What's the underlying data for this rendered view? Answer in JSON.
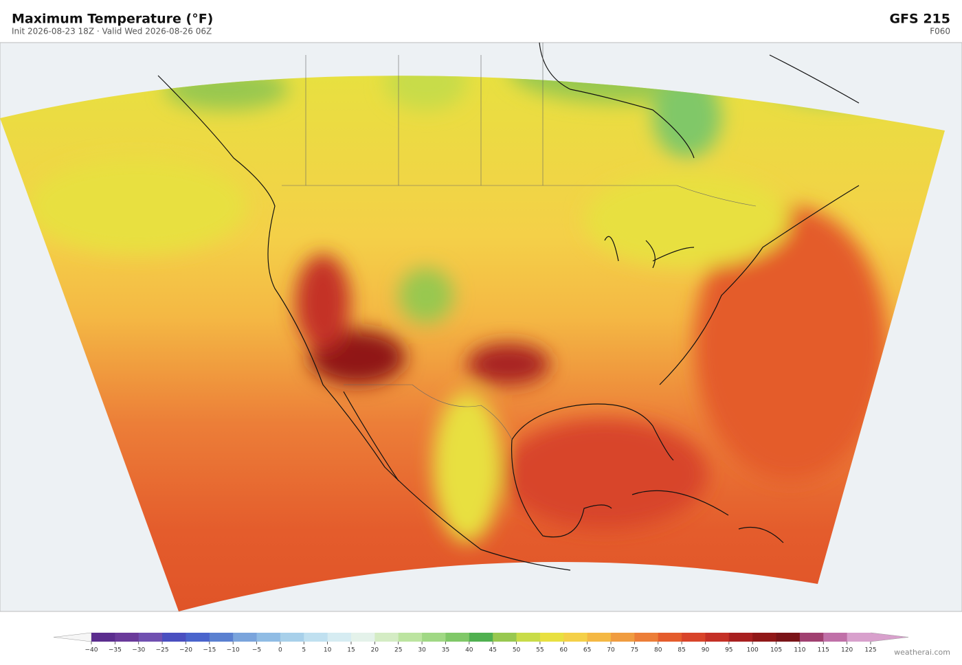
{
  "header": {
    "title": "Maximum Temperature  (°F)",
    "subtitle": "Init 2026-08-23 18Z   ·   Valid Wed 2026-08-26 06Z",
    "model": "GFS  215",
    "forecast_hour": "F060"
  },
  "colorbar": {
    "lim": [
      -40,
      125
    ],
    "ticks": [
      {
        "value": -40,
        "label": "−40"
      },
      {
        "value": -35,
        "label": "−35"
      },
      {
        "value": -30,
        "label": "−30"
      },
      {
        "value": -25,
        "label": "−25"
      },
      {
        "value": -20,
        "label": "−20"
      },
      {
        "value": -15,
        "label": "−15"
      },
      {
        "value": -10,
        "label": "−10"
      },
      {
        "value": -5,
        "label": "−5"
      },
      0,
      5,
      10,
      15,
      20,
      25,
      30,
      35,
      40,
      45,
      50,
      55,
      60,
      65,
      70,
      75,
      80,
      85,
      90,
      95,
      100,
      105,
      110,
      115,
      120,
      125
    ],
    "colors": [
      "#5b2d8e",
      "#6a3a9a",
      "#7050b0",
      "#4a4fc0",
      "#4a64cc",
      "#5a80d0",
      "#7aa4dc",
      "#90bce4",
      "#a8d0ea",
      "#c0e0f0",
      "#d6ecf2",
      "#e4f2ea",
      "#d4ecc4",
      "#bce4a0",
      "#a0d884",
      "#80c868",
      "#50b050",
      "#98c850",
      "#c8dc48",
      "#e8e040",
      "#f4d048",
      "#f4b844",
      "#f09c40",
      "#ec7e38",
      "#e45c2c",
      "#d8442a",
      "#c43026",
      "#a82020",
      "#901818",
      "#7a1418",
      "#a04070",
      "#c070a8",
      "#d8a0cc"
    ],
    "under_color": "#f6f6f6",
    "over_color": "#d8a0cc"
  },
  "credit": "weatherai.com"
}
